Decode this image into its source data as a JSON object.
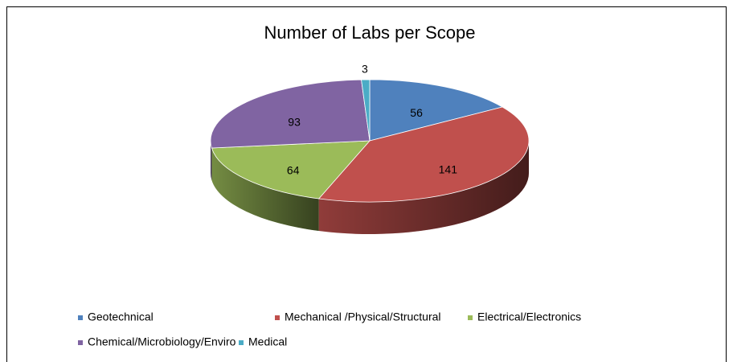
{
  "chart_data": {
    "type": "pie3d",
    "title": "Number of Labs per Scope",
    "categories": [
      "Geotechnical",
      "Mechanical /Physical/Structural",
      "Electrical/Electronics",
      "Chemical/Microbiology/Enviro",
      "Medical"
    ],
    "values": [
      56,
      141,
      64,
      93,
      3
    ],
    "colors": [
      "#4f81bd",
      "#c0504d",
      "#9bbb59",
      "#8064a2",
      "#4bacc6"
    ],
    "legend": "bottom"
  }
}
